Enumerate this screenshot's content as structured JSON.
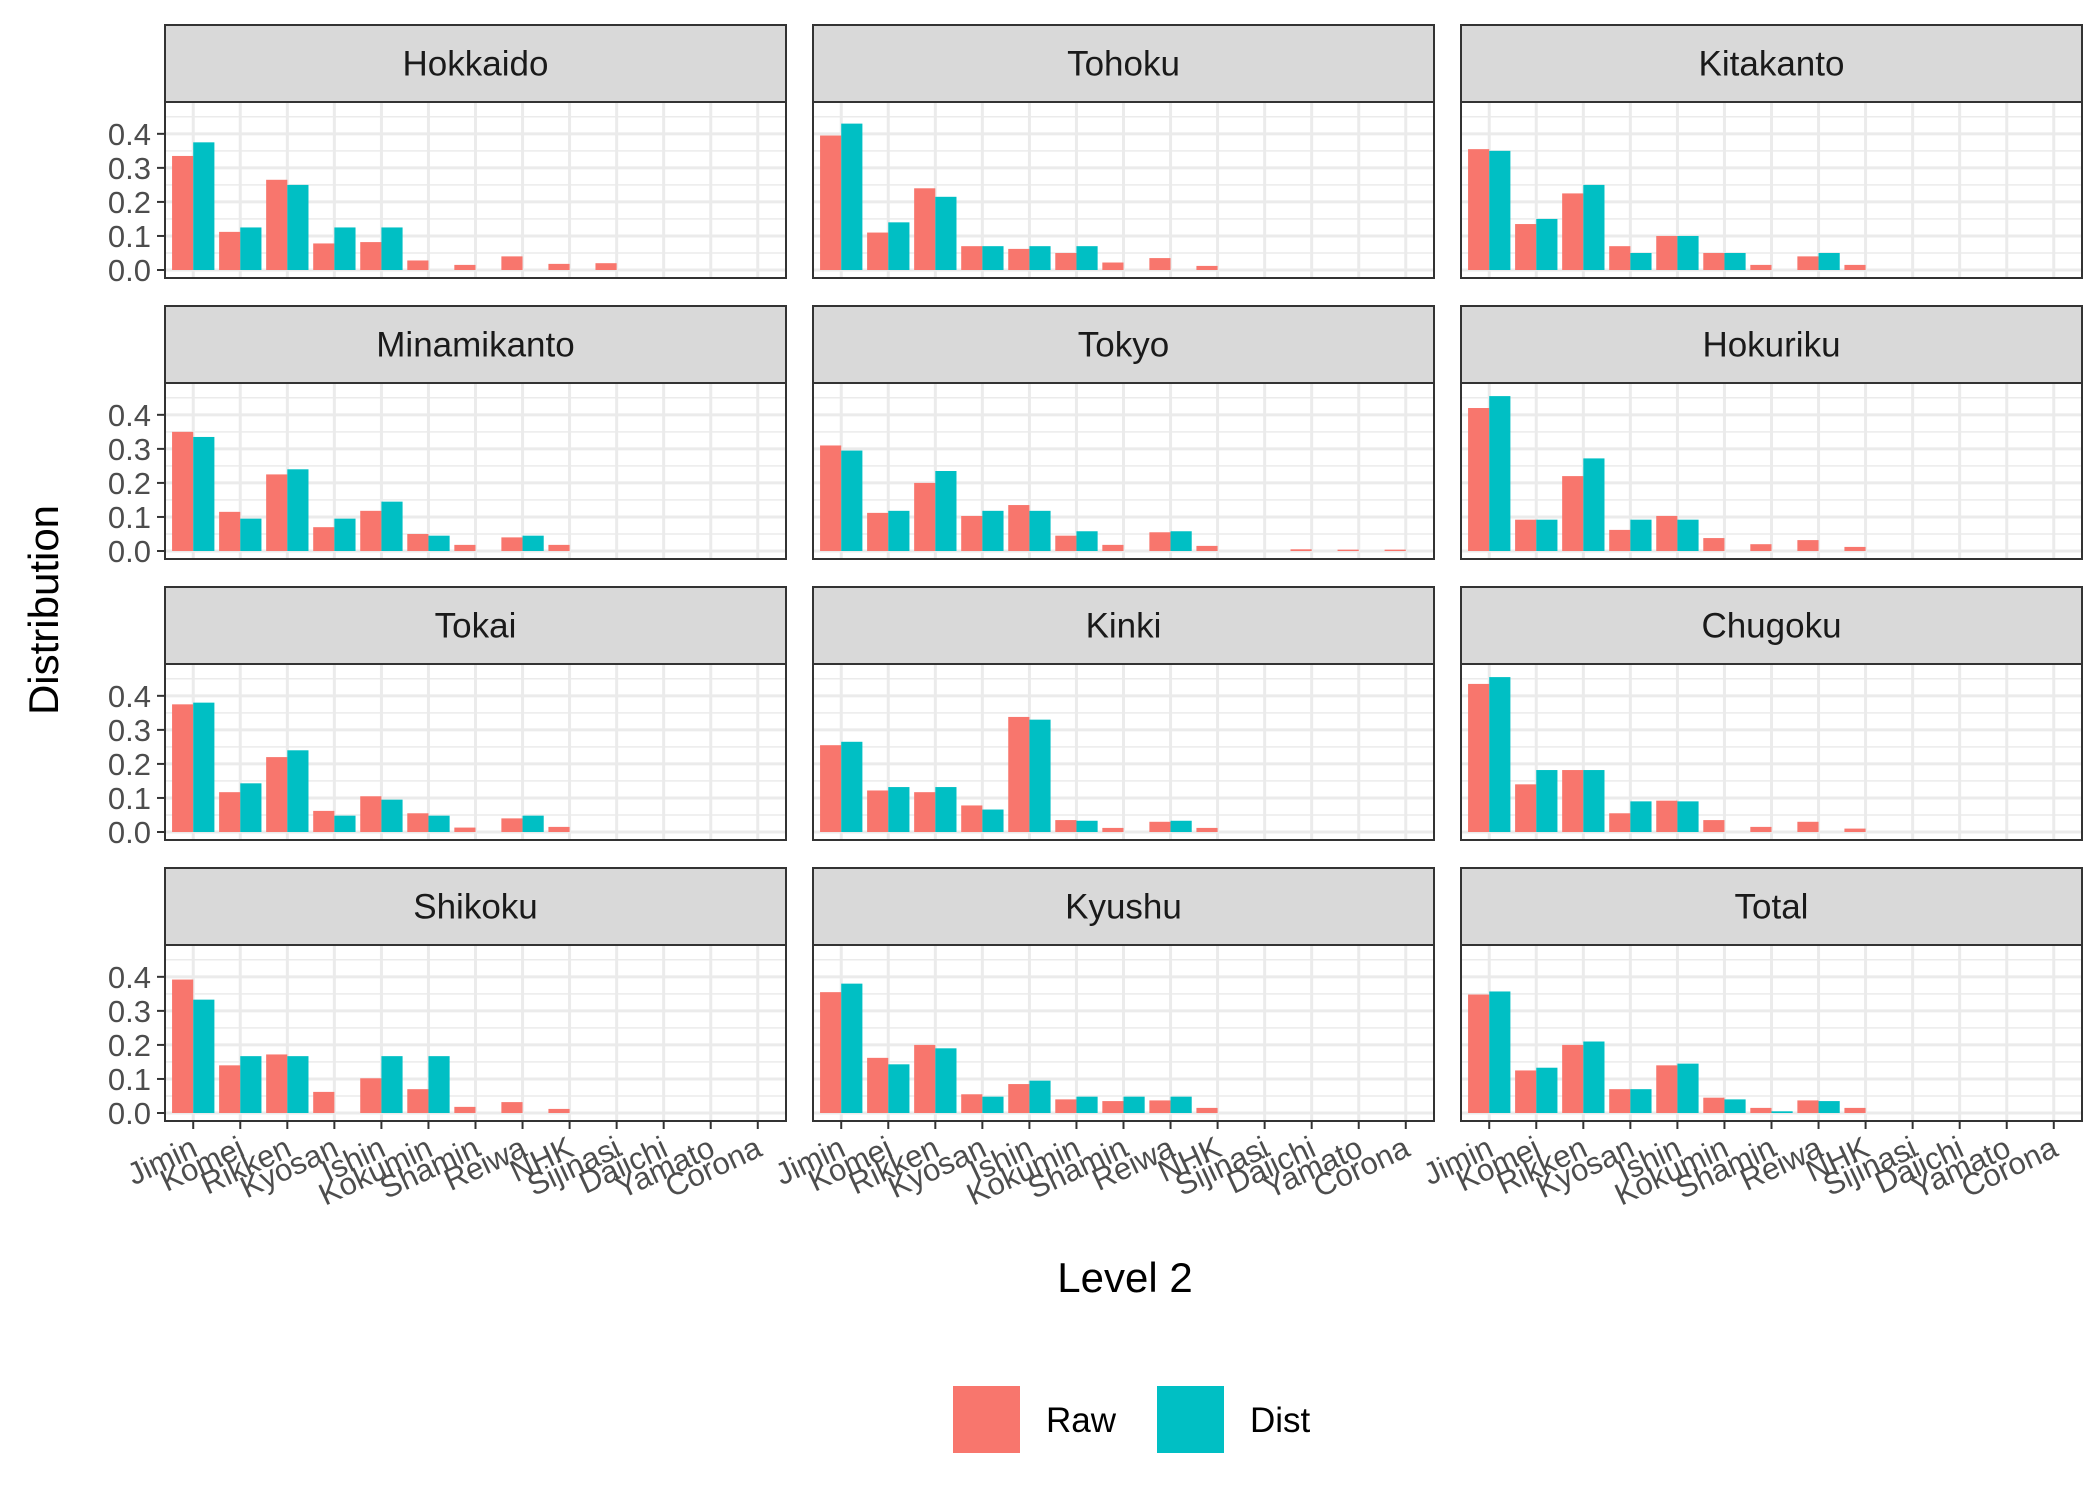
{
  "chart_data": {
    "type": "bar",
    "facet_layout": "4 rows x 3 columns",
    "categories": [
      "Jimin",
      "Komei",
      "Rikken",
      "Kyosan",
      "Ishin",
      "Kokumin",
      "Shamin",
      "Reiwa",
      "NHK",
      "Sijinasi",
      "Daiichi",
      "Yamato",
      "Corona"
    ],
    "xlabel": "Level 2",
    "ylabel": "Distribution",
    "ylim": [
      0,
      0.47
    ],
    "yticks": [
      "0.0",
      "0.1",
      "0.2",
      "0.3",
      "0.4"
    ],
    "grid": true,
    "legend": {
      "position": "bottom",
      "entries": [
        {
          "name": "Raw",
          "color": "#F8766D"
        },
        {
          "name": "Dist",
          "color": "#00BFC4"
        }
      ]
    },
    "colors": {
      "Raw": "#F8766D",
      "Dist": "#00BFC4",
      "strip": "#d9d9d9",
      "grid": "#ebebeb",
      "border": "#333333"
    },
    "panels": [
      {
        "name": "Hokkaido",
        "Raw": [
          0.335,
          0.112,
          0.265,
          0.078,
          0.082,
          0.028,
          0.015,
          0.04,
          0.018,
          0.02,
          0,
          0,
          0
        ],
        "Dist": [
          0.375,
          0.125,
          0.25,
          0.125,
          0.125,
          0,
          0,
          0,
          0,
          0,
          0,
          0,
          0
        ]
      },
      {
        "name": "Tohoku",
        "Raw": [
          0.395,
          0.11,
          0.24,
          0.07,
          0.062,
          0.05,
          0.022,
          0.035,
          0.012,
          0,
          0,
          0,
          0
        ],
        "Dist": [
          0.43,
          0.14,
          0.215,
          0.07,
          0.07,
          0.07,
          0,
          0,
          0,
          0,
          0,
          0,
          0
        ]
      },
      {
        "name": "Kitakanto",
        "Raw": [
          0.355,
          0.135,
          0.225,
          0.07,
          0.1,
          0.05,
          0.015,
          0.04,
          0.015,
          0,
          0,
          0,
          0
        ],
        "Dist": [
          0.35,
          0.15,
          0.25,
          0.05,
          0.1,
          0.05,
          0,
          0.05,
          0,
          0,
          0,
          0,
          0
        ]
      },
      {
        "name": "Minamikanto",
        "Raw": [
          0.35,
          0.115,
          0.225,
          0.07,
          0.118,
          0.05,
          0.018,
          0.04,
          0.018,
          0,
          0,
          0,
          0
        ],
        "Dist": [
          0.335,
          0.095,
          0.24,
          0.095,
          0.145,
          0.045,
          0,
          0.045,
          0,
          0,
          0,
          0,
          0
        ]
      },
      {
        "name": "Tokyo",
        "Raw": [
          0.31,
          0.112,
          0.2,
          0.103,
          0.135,
          0.045,
          0.018,
          0.055,
          0.015,
          0,
          0.005,
          0.004,
          0.004
        ],
        "Dist": [
          0.295,
          0.118,
          0.235,
          0.118,
          0.118,
          0.058,
          0,
          0.058,
          0,
          0,
          0,
          0,
          0
        ]
      },
      {
        "name": "Hokuriku",
        "Raw": [
          0.42,
          0.092,
          0.22,
          0.062,
          0.103,
          0.038,
          0.02,
          0.032,
          0.012,
          0,
          0,
          0,
          0
        ],
        "Dist": [
          0.455,
          0.092,
          0.272,
          0.092,
          0.092,
          0,
          0,
          0,
          0,
          0,
          0,
          0,
          0
        ]
      },
      {
        "name": "Tokai",
        "Raw": [
          0.375,
          0.117,
          0.22,
          0.062,
          0.105,
          0.055,
          0.013,
          0.04,
          0.015,
          0,
          0,
          0,
          0
        ],
        "Dist": [
          0.38,
          0.143,
          0.24,
          0.048,
          0.095,
          0.048,
          0,
          0.048,
          0,
          0,
          0,
          0,
          0
        ]
      },
      {
        "name": "Kinki",
        "Raw": [
          0.255,
          0.122,
          0.117,
          0.078,
          0.338,
          0.035,
          0.012,
          0.03,
          0.012,
          0,
          0,
          0,
          0
        ],
        "Dist": [
          0.265,
          0.132,
          0.132,
          0.066,
          0.33,
          0.033,
          0,
          0.033,
          0,
          0,
          0,
          0,
          0
        ]
      },
      {
        "name": "Chugoku",
        "Raw": [
          0.435,
          0.14,
          0.182,
          0.055,
          0.092,
          0.035,
          0.015,
          0.03,
          0.01,
          0,
          0,
          0,
          0
        ],
        "Dist": [
          0.455,
          0.182,
          0.182,
          0.09,
          0.09,
          0,
          0,
          0,
          0,
          0,
          0,
          0,
          0
        ]
      },
      {
        "name": "Shikoku",
        "Raw": [
          0.392,
          0.14,
          0.172,
          0.062,
          0.102,
          0.07,
          0.018,
          0.032,
          0.012,
          0,
          0,
          0,
          0
        ],
        "Dist": [
          0.333,
          0.167,
          0.167,
          0,
          0.167,
          0.167,
          0,
          0,
          0,
          0,
          0,
          0,
          0
        ]
      },
      {
        "name": "Kyushu",
        "Raw": [
          0.355,
          0.162,
          0.2,
          0.055,
          0.085,
          0.04,
          0.035,
          0.037,
          0.015,
          0,
          0,
          0,
          0
        ],
        "Dist": [
          0.38,
          0.143,
          0.19,
          0.048,
          0.095,
          0.048,
          0.048,
          0.048,
          0,
          0,
          0,
          0,
          0
        ]
      },
      {
        "name": "Total",
        "Raw": [
          0.348,
          0.125,
          0.2,
          0.07,
          0.14,
          0.045,
          0.015,
          0.037,
          0.015,
          0,
          0,
          0,
          0
        ],
        "Dist": [
          0.357,
          0.133,
          0.21,
          0.07,
          0.145,
          0.04,
          0.005,
          0.035,
          0,
          0,
          0,
          0,
          0
        ]
      }
    ]
  }
}
